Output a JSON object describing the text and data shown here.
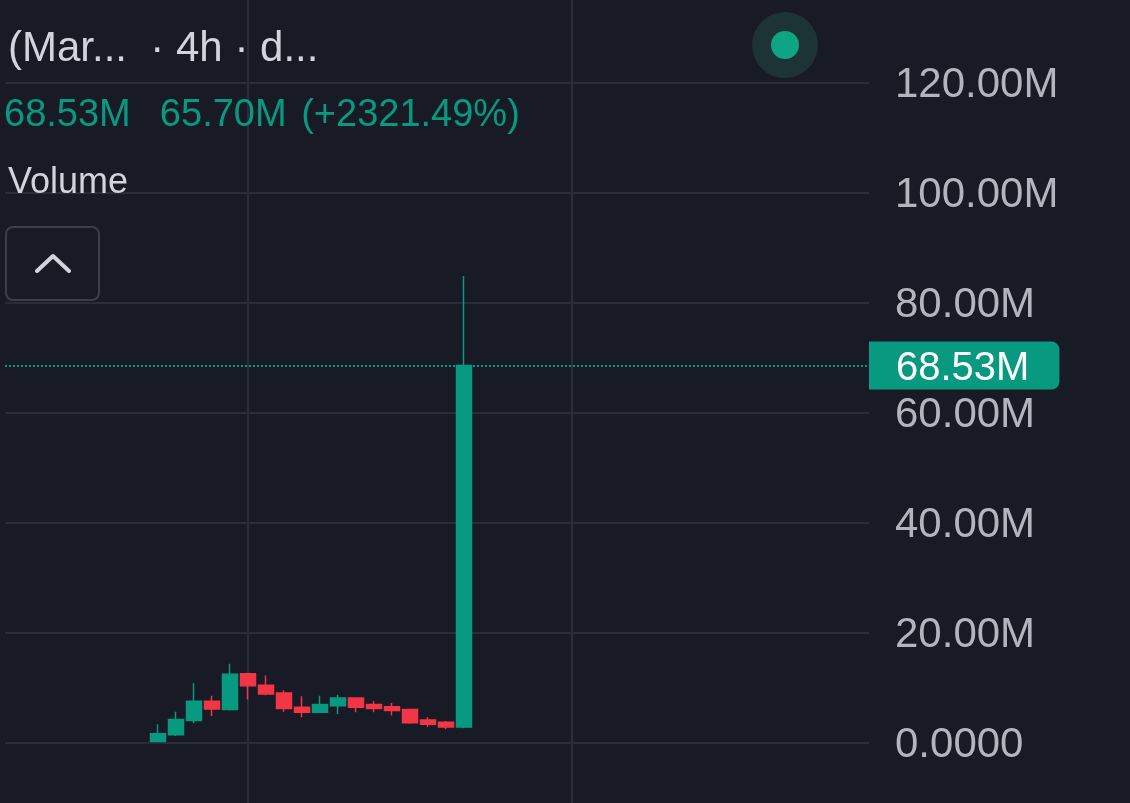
{
  "chart_data": {
    "type": "candlestick",
    "title": "(Mar...  · 4h · d...",
    "annotations": [
      "68.53M  65.70M (+2321.49%)",
      "Volume"
    ],
    "categories": [
      null,
      null,
      null,
      null,
      null,
      null,
      null,
      null,
      null,
      null,
      null,
      null,
      null,
      null,
      null,
      null,
      null,
      null,
      null,
      null,
      null,
      null,
      null,
      null,
      null,
      null,
      null,
      null,
      null,
      null,
      null,
      null,
      null,
      null,
      null,
      null,
      null,
      null,
      null,
      null,
      null,
      null,
      null,
      null,
      null,
      null,
      null,
      null
    ],
    "ohlc": [
      null,
      null,
      null,
      null,
      null,
      null,
      null,
      null,
      [
        0.2,
        3.3,
        0.1,
        1.6
      ],
      [
        1.4,
        5.6,
        1.2,
        4.2
      ],
      [
        4.0,
        10.8,
        3.5,
        7.5
      ],
      [
        7.5,
        8.5,
        4.8,
        6.1
      ],
      [
        6.0,
        14.3,
        5.8,
        12.4
      ],
      [
        12.5,
        12.5,
        7.8,
        10.3
      ],
      [
        10.4,
        12.2,
        8.6,
        8.8
      ],
      [
        9.0,
        9.5,
        5.6,
        6.2
      ],
      [
        6.4,
        8.4,
        4.6,
        5.5
      ],
      [
        5.5,
        8.5,
        5.4,
        6.9
      ],
      [
        6.7,
        8.7,
        5.2,
        8.1
      ],
      [
        8.1,
        8.2,
        5.5,
        6.4
      ],
      [
        6.9,
        7.5,
        5.5,
        6.2
      ],
      [
        6.5,
        7.2,
        4.9,
        5.8
      ],
      [
        6.0,
        6.0,
        3.4,
        3.6
      ],
      [
        4.1,
        4.6,
        2.8,
        3.3
      ],
      [
        3.7,
        3.9,
        2.4,
        2.83
      ],
      [
        2.83,
        84.8,
        2.6,
        68.53
      ],
      null,
      null,
      null,
      null,
      null,
      null,
      null,
      null,
      null,
      null,
      null,
      null,
      null,
      null,
      null,
      null,
      null,
      null,
      null,
      null,
      null,
      null
    ],
    "colors": [
      null,
      null,
      null,
      null,
      null,
      null,
      null,
      null,
      "#089981",
      "#089981",
      "#089981",
      "#f23645",
      "#089981",
      "#f23645",
      "#f23645",
      "#f23645",
      "#f23645",
      "#089981",
      "#089981",
      "#f23645",
      "#f23645",
      "#f23645",
      "#f23645",
      "#f23645",
      "#f23645",
      "#089981",
      null,
      null,
      null,
      null,
      null,
      null,
      null,
      null,
      null,
      null,
      null,
      null,
      null,
      null,
      null,
      null,
      null,
      null,
      null,
      null,
      null,
      null
    ],
    "ylim": [
      -11,
      135
    ],
    "yticks": [
      {
        "value": 0,
        "label": "0.0000"
      },
      {
        "value": 20,
        "label": "20.00M"
      },
      {
        "value": 40,
        "label": "40.00M"
      },
      {
        "value": 60,
        "label": "60.00M"
      },
      {
        "value": 80,
        "label": "80.00M"
      },
      {
        "value": 100,
        "label": "100.00M"
      },
      {
        "value": 120,
        "label": "120.00M"
      }
    ],
    "ref_lines": [
      {
        "axis": "y",
        "value": 68.53,
        "label": "68.53M",
        "color": "#089981",
        "line_style": "dotted"
      }
    ],
    "grid": true,
    "tick_labels": "y"
  }
}
